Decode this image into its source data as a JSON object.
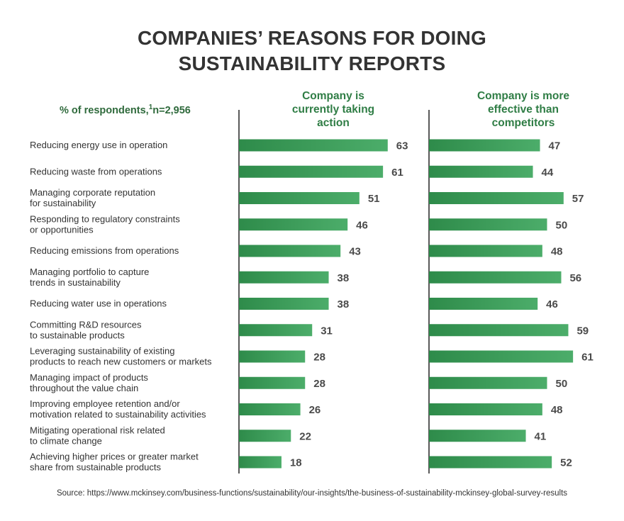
{
  "chart_data": {
    "type": "bar",
    "orientation": "horizontal",
    "title_lines": [
      "COMPANIES’ REASONS FOR DOING",
      "SUSTAINABILITY REPORTS"
    ],
    "subtitle_prefix": "% of respondents,",
    "subtitle_footnote": "1",
    "subtitle_suffix": "n=2,956",
    "categories": [
      [
        "Reducing energy use in operation"
      ],
      [
        "Reducing waste from operations"
      ],
      [
        "Managing corporate reputation",
        "for sustainability"
      ],
      [
        "Responding to regulatory constraints",
        "or opportunities"
      ],
      [
        "Reducing emissions from operations"
      ],
      [
        "Managing portfolio to capture",
        "trends in sustainability"
      ],
      [
        "Reducing water use in operations"
      ],
      [
        "Committing R&D resources",
        "to sustainable products"
      ],
      [
        "Leveraging sustainability of existing",
        "products to reach new customers or markets"
      ],
      [
        "Managing impact of products",
        "throughout the value chain"
      ],
      [
        "Improving employee retention and/or",
        "motivation related to sustainability activities"
      ],
      [
        "Mitigating operational risk related",
        "to climate change"
      ],
      [
        "Achieving higher prices or greater market",
        "share from sustainable products"
      ]
    ],
    "series": [
      {
        "name_lines": [
          "Company is",
          "currently taking",
          "action"
        ],
        "values": [
          63,
          61,
          51,
          46,
          43,
          38,
          38,
          31,
          28,
          28,
          26,
          22,
          18
        ]
      },
      {
        "name_lines": [
          "Company is more",
          "effective than",
          "competitors"
        ],
        "values": [
          47,
          44,
          57,
          50,
          48,
          56,
          46,
          59,
          61,
          50,
          48,
          41,
          52
        ]
      }
    ],
    "xlim": [
      0,
      100
    ],
    "grid": false,
    "bar_color": "#2e8b4a",
    "bar_gradient_end": "#4cad6a",
    "header_color": "#2f7d45"
  },
  "source": "Source: https://www.mckinsey.com/business-functions/sustainability/our-insights/the-business-of-sustainability-mckinsey-global-survey-results"
}
